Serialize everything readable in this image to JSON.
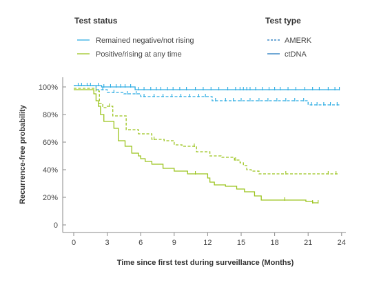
{
  "legend": {
    "status_title": "Test status",
    "status_items": [
      {
        "label": "Remained negative/not rising",
        "color": "#29abe2"
      },
      {
        "label": "Positive/rising at any time",
        "color": "#9bc31c"
      }
    ],
    "type_title": "Test type",
    "type_items": [
      {
        "label": "AMERK",
        "style": "dashed",
        "color": "#1b75bc"
      },
      {
        "label": "ctDNA",
        "style": "solid",
        "color": "#1b75bc"
      }
    ]
  },
  "chart_data": {
    "type": "line",
    "subtype": "kaplan-meier step",
    "xlabel": "Time since first test during surveillance (Months)",
    "ylabel": "Recurrence-free probability",
    "xlim": [
      -1,
      24.5
    ],
    "ylim": [
      0,
      100
    ],
    "xticks": [
      0,
      3,
      6,
      9,
      12,
      15,
      18,
      21,
      24
    ],
    "yticks": [
      0,
      20,
      40,
      60,
      80,
      100
    ],
    "ytick_labels": [
      "0",
      "20%",
      "40%",
      "60%",
      "80%",
      "100%"
    ],
    "grid": false,
    "series": [
      {
        "status": "Remained negative/not rising",
        "test_type": "ctDNA",
        "style": "solid",
        "color": "#29abe2",
        "x": [
          0,
          2.5,
          5.5,
          23.8
        ],
        "y": [
          101,
          100,
          98,
          98
        ],
        "censor_x": [
          0.4,
          0.7,
          1.2,
          1.5,
          2.2,
          2.7,
          3.3,
          3.8,
          4.2,
          4.6,
          5.1,
          5.8,
          6.3,
          6.9,
          7.4,
          7.8,
          8.4,
          8.9,
          9.5,
          10.1,
          10.9,
          11.6,
          12.3,
          13.0,
          13.8,
          14.5,
          14.9,
          15.2,
          15.5,
          15.8,
          16.3,
          16.9,
          17.5,
          18.0,
          18.5,
          19.2,
          19.9,
          20.7,
          21.4,
          22.0,
          22.8,
          23.4,
          23.8
        ]
      },
      {
        "status": "Remained negative/not rising",
        "test_type": "AMERK",
        "style": "dashed",
        "color": "#29abe2",
        "x": [
          0,
          2.0,
          3.0,
          4.5,
          6.0,
          12.0,
          12.4,
          21.0,
          23.8
        ],
        "y": [
          101,
          98,
          96,
          95,
          93,
          93,
          90,
          87,
          87
        ],
        "censor_x": [
          2.6,
          3.6,
          4.8,
          5.6,
          6.3,
          7.2,
          8.0,
          8.8,
          9.6,
          10.4,
          11.2,
          11.8,
          12.7,
          13.6,
          14.3,
          15.0,
          15.8,
          16.6,
          17.4,
          18.2,
          19.0,
          19.8,
          20.6,
          21.3,
          21.8,
          22.4,
          23.0,
          23.6
        ]
      },
      {
        "status": "Positive/rising at any time",
        "test_type": "AMERK",
        "style": "dashed",
        "color": "#9bc31c",
        "x": [
          0,
          2.0,
          2.3,
          2.6,
          3.0,
          3.5,
          4.7,
          5.8,
          7.0,
          8.1,
          9.0,
          9.7,
          11.0,
          12.2,
          13.2,
          14.4,
          14.9,
          15.2,
          15.5,
          15.9,
          16.6,
          23.8
        ],
        "y": [
          99,
          97,
          88,
          85,
          86,
          79,
          69,
          66,
          62,
          61,
          58,
          57,
          53,
          50,
          49,
          47,
          45,
          43,
          40,
          39,
          37,
          37
        ],
        "censor_x": [
          3.2,
          7.2,
          10.8,
          14.5,
          19.0,
          22.8,
          23.5
        ]
      },
      {
        "status": "Positive/rising at any time",
        "test_type": "ctDNA",
        "style": "solid",
        "color": "#9bc31c",
        "x": [
          0,
          1.8,
          2.0,
          2.2,
          2.4,
          2.7,
          3.6,
          4.0,
          4.6,
          5.2,
          5.8,
          6.0,
          6.4,
          7.0,
          8.0,
          9.0,
          10.2,
          12.0,
          12.2,
          12.6,
          13.6,
          14.6,
          15.3,
          16.2,
          16.8,
          20.8,
          21.4,
          21.9
        ],
        "y": [
          98,
          95,
          90,
          86,
          80,
          75,
          70,
          61,
          57,
          52,
          50,
          48,
          46,
          44,
          41,
          39,
          37,
          34,
          31,
          29,
          28,
          26,
          24,
          21,
          18,
          17,
          16,
          16
        ],
        "censor_x": [
          10.9,
          18.9,
          21.4,
          21.9
        ]
      }
    ]
  }
}
